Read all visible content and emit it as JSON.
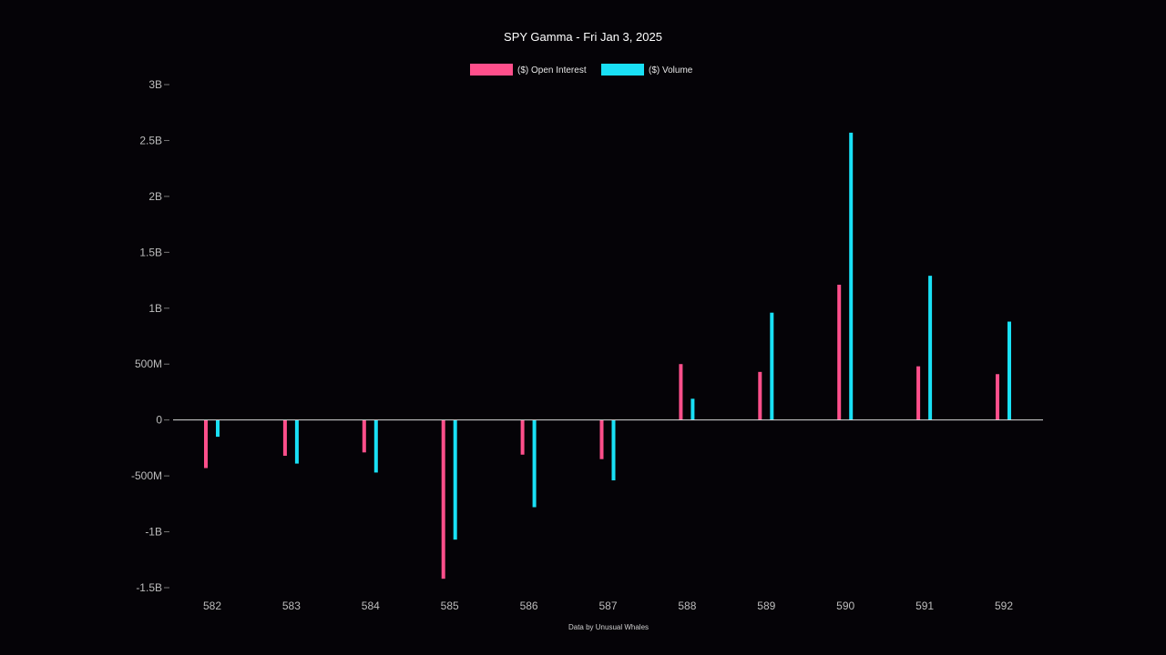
{
  "chart_data": {
    "type": "bar",
    "title": "SPY Gamma - Fri Jan 3, 2025",
    "xlabel": "",
    "ylabel": "",
    "categories": [
      "582",
      "583",
      "584",
      "585",
      "586",
      "587",
      "588",
      "589",
      "590",
      "591",
      "592"
    ],
    "series": [
      {
        "name": "($) Open Interest",
        "color": "#ff4f8b",
        "values": [
          -430000000,
          -320000000,
          -290000000,
          -1420000000,
          -310000000,
          -350000000,
          500000000,
          430000000,
          1210000000,
          480000000,
          410000000
        ]
      },
      {
        "name": "($) Volume",
        "color": "#19e0f5",
        "values": [
          -150000000,
          -390000000,
          -470000000,
          -1070000000,
          -780000000,
          -540000000,
          190000000,
          960000000,
          2570000000,
          1290000000,
          880000000
        ]
      }
    ],
    "ylim": [
      -1500000000,
      3000000000
    ],
    "y_ticks": [
      {
        "value": 3000000000,
        "label": "3B"
      },
      {
        "value": 2500000000,
        "label": "2.5B"
      },
      {
        "value": 2000000000,
        "label": "2B"
      },
      {
        "value": 1500000000,
        "label": "1.5B"
      },
      {
        "value": 1000000000,
        "label": "1B"
      },
      {
        "value": 500000000,
        "label": "500M"
      },
      {
        "value": 0,
        "label": "0"
      },
      {
        "value": -500000000,
        "label": "-500M"
      },
      {
        "value": -1000000000,
        "label": "-1B"
      },
      {
        "value": -1500000000,
        "label": "-1.5B"
      }
    ],
    "grid": false,
    "legend_position": "top-center",
    "footer_text": "Data by Unusual Whales"
  }
}
